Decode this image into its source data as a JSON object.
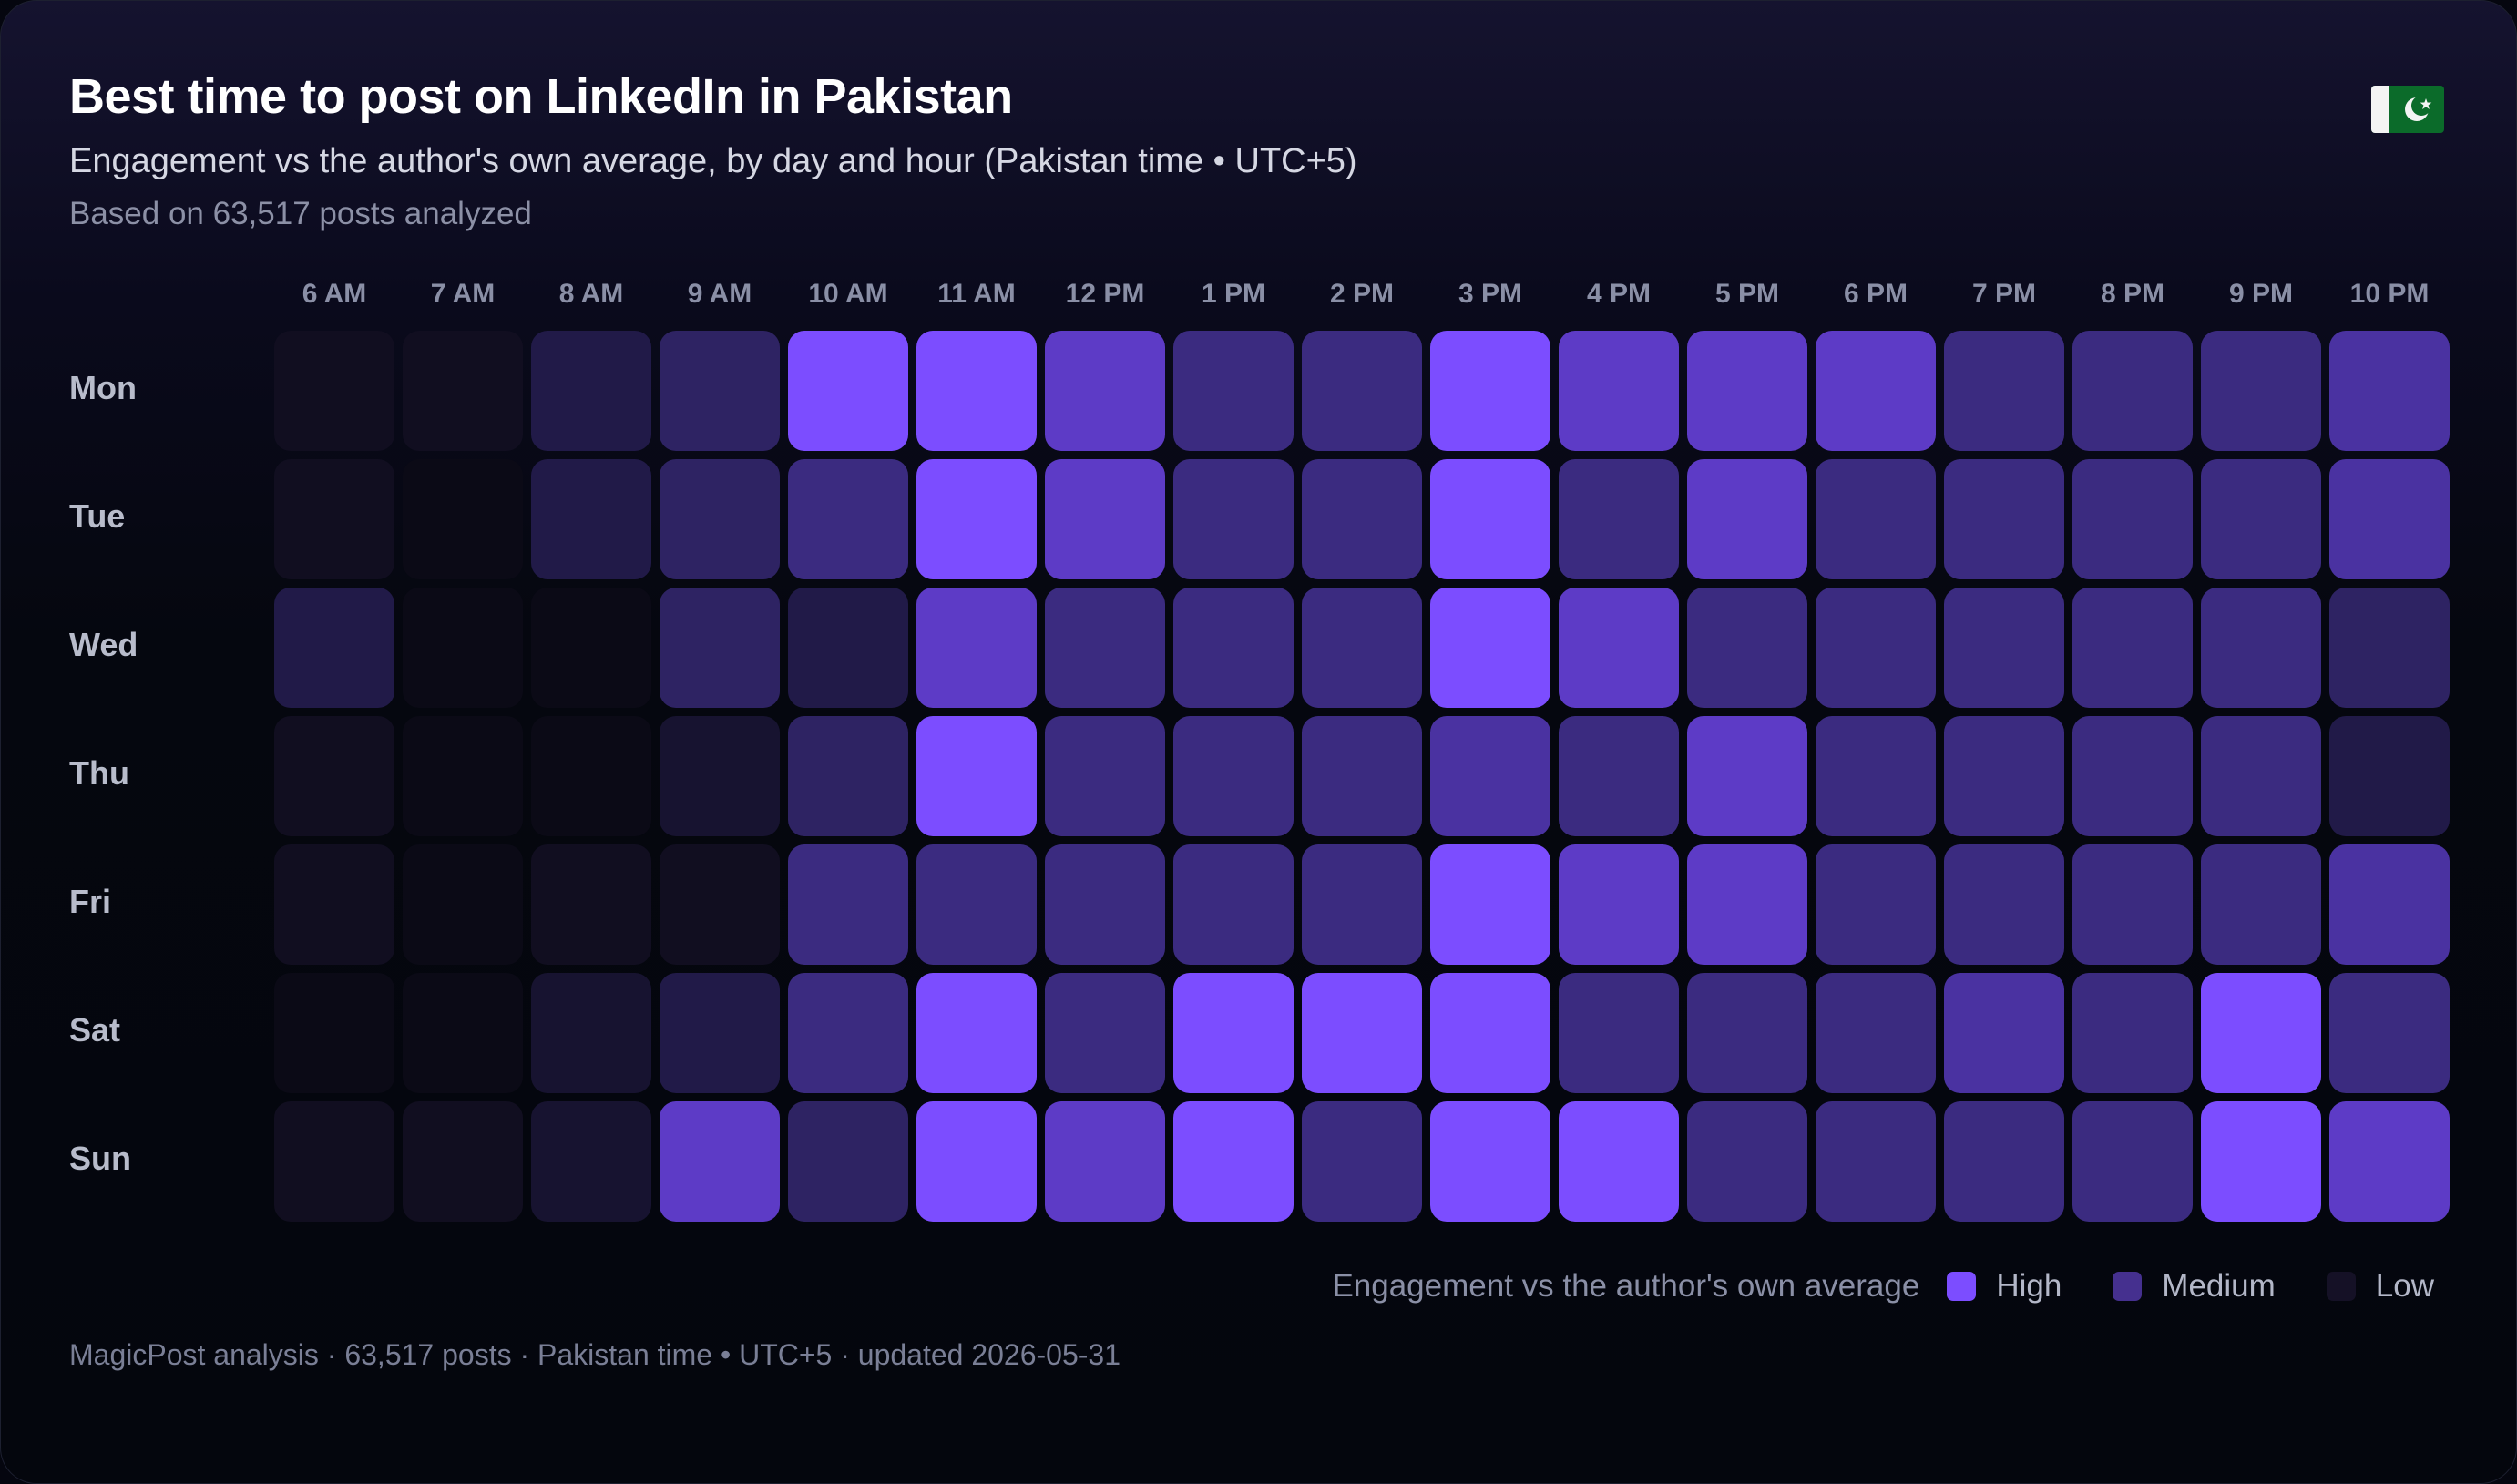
{
  "header": {
    "title": "Best time to post on LinkedIn in Pakistan",
    "subtitle": "Engagement vs the author's own average, by day and hour (Pakistan time • UTC+5)",
    "basis": "Based on 63,517 posts analyzed",
    "flag_icon": "pakistan-flag-icon"
  },
  "legend": {
    "title": "Engagement vs the author's own average",
    "items": [
      {
        "label": "High",
        "color": "#7c4dff"
      },
      {
        "label": "Medium",
        "color": "#45308f"
      },
      {
        "label": "Low",
        "color": "#151126"
      }
    ]
  },
  "footer": "MagicPost analysis · 63,517 posts · Pakistan time • UTC+5 · updated 2026-05-31",
  "colors": {
    "level_scale": [
      "#0b0a16",
      "#110e20",
      "#171330",
      "#211a48",
      "#2e2363",
      "#3b2b80",
      "#4a32a1",
      "#5d3bc6",
      "#7c4dff"
    ]
  },
  "chart_data": {
    "type": "heatmap",
    "title": "Best time to post on LinkedIn in Pakistan",
    "x": [
      "6 AM",
      "7 AM",
      "8 AM",
      "9 AM",
      "10 AM",
      "11 AM",
      "12 PM",
      "1 PM",
      "2 PM",
      "3 PM",
      "4 PM",
      "5 PM",
      "6 PM",
      "7 PM",
      "8 PM",
      "9 PM",
      "10 PM"
    ],
    "y": [
      "Mon",
      "Tue",
      "Wed",
      "Thu",
      "Fri",
      "Sat",
      "Sun"
    ],
    "value_scale": "relative engagement level 0 (low) to 8 (high)",
    "values": [
      [
        1,
        1,
        3,
        4,
        8,
        8,
        7,
        5,
        5,
        8,
        7,
        7,
        7,
        5,
        5,
        5,
        6
      ],
      [
        1,
        0,
        3,
        4,
        5,
        8,
        7,
        5,
        5,
        8,
        5,
        7,
        5,
        5,
        5,
        5,
        6
      ],
      [
        3,
        0,
        0,
        4,
        3,
        7,
        5,
        5,
        5,
        8,
        7,
        5,
        5,
        5,
        5,
        5,
        4
      ],
      [
        1,
        0,
        0,
        2,
        4,
        8,
        5,
        5,
        5,
        6,
        5,
        7,
        5,
        5,
        5,
        5,
        3
      ],
      [
        1,
        0,
        1,
        1,
        5,
        5,
        5,
        5,
        5,
        8,
        7,
        7,
        5,
        5,
        5,
        5,
        6
      ],
      [
        0,
        0,
        2,
        3,
        5,
        8,
        5,
        8,
        8,
        8,
        5,
        5,
        5,
        6,
        5,
        8,
        5
      ],
      [
        1,
        1,
        2,
        7,
        4,
        8,
        7,
        8,
        5,
        8,
        8,
        5,
        5,
        5,
        5,
        8,
        7
      ]
    ]
  }
}
